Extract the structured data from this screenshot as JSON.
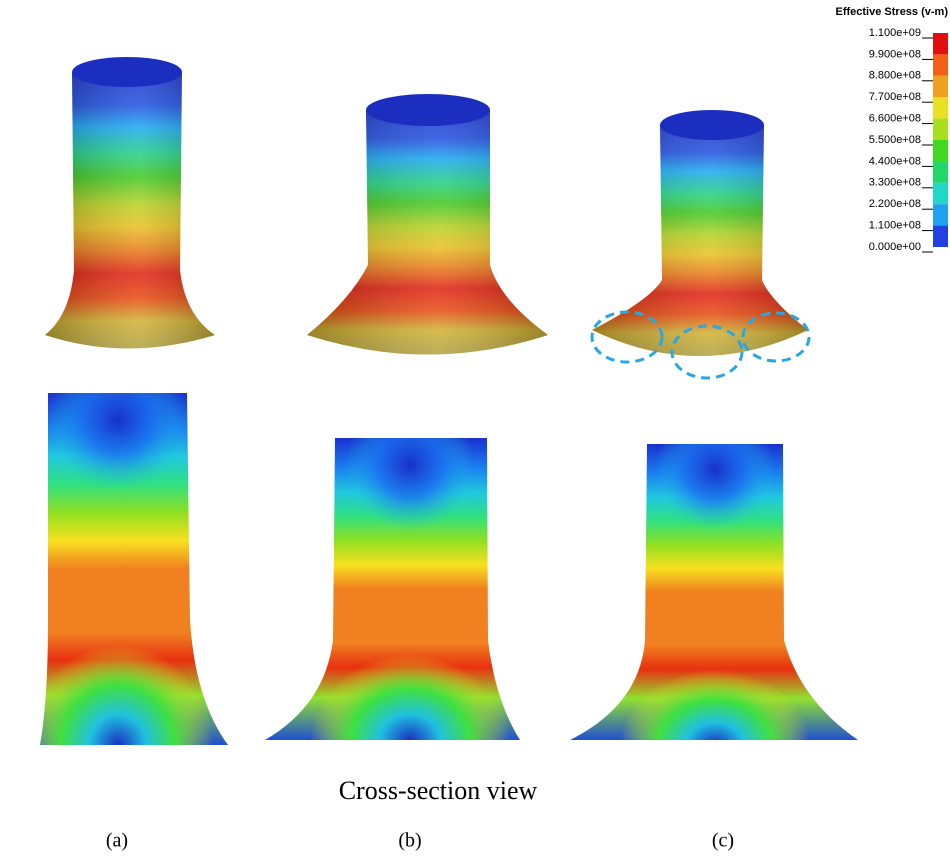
{
  "legend": {
    "title": "Effective Stress (v-m)",
    "labels": [
      "1.100e+09",
      "9.900e+08",
      "8.800e+08",
      "7.700e+08",
      "6.600e+08",
      "5.500e+08",
      "4.400e+08",
      "3.300e+08",
      "2.200e+08",
      "1.100e+08",
      "0.000e+00"
    ]
  },
  "caption": "Cross-section view",
  "panels": [
    {
      "label": "(a)"
    },
    {
      "label": "(b)"
    },
    {
      "label": "(c)"
    }
  ]
}
